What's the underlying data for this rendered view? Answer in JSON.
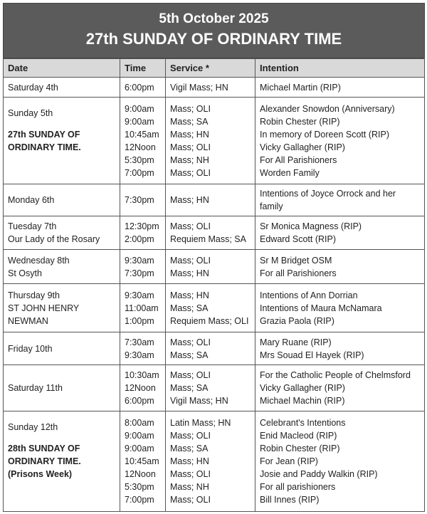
{
  "header": {
    "date": "5th October 2025",
    "title": "27th SUNDAY OF ORDINARY TIME"
  },
  "columns": [
    "Date",
    "Time",
    "Service *",
    "Intention"
  ],
  "rows": [
    {
      "date": [
        "Saturday 4th"
      ],
      "bold": [],
      "times": [
        "6:00pm"
      ],
      "services": [
        "Vigil Mass; HN"
      ],
      "intentions": [
        "Michael Martin (RIP)"
      ]
    },
    {
      "date": [
        "Sunday 5th"
      ],
      "bold": [
        "27th SUNDAY OF",
        "ORDINARY TIME."
      ],
      "times": [
        "9:00am",
        "9:00am",
        "10:45am",
        "12Noon",
        "5:30pm",
        "7:00pm"
      ],
      "services": [
        "Mass; OLI",
        "Mass; SA",
        "Mass; HN",
        "Mass; OLI",
        "Mass; NH",
        "Mass; OLI"
      ],
      "intentions": [
        "Alexander Snowdon (Anniversary)",
        "Robin Chester (RIP)",
        "In memory of Doreen Scott (RIP)",
        "Vicky Gallagher (RIP)",
        "For All Parishioners",
        "Worden Family"
      ]
    },
    {
      "date": [
        "Monday 6th"
      ],
      "bold": [],
      "times": [
        "7:30pm"
      ],
      "services": [
        "Mass; HN"
      ],
      "intentions": [
        "Intentions of Joyce Orrock and her family"
      ]
    },
    {
      "date": [
        "Tuesday 7th",
        "Our Lady of the Rosary"
      ],
      "bold": [],
      "times": [
        "12:30pm",
        "2:00pm"
      ],
      "services": [
        "Mass; OLI",
        "Requiem Mass; SA"
      ],
      "intentions": [
        "Sr Monica Magness (RIP)",
        "Edward Scott (RIP)"
      ]
    },
    {
      "date": [
        "Wednesday 8th",
        "St Osyth"
      ],
      "bold": [],
      "times": [
        "9:30am",
        "7:30pm"
      ],
      "services": [
        "Mass; OLI",
        "Mass; HN"
      ],
      "intentions": [
        "Sr M Bridget OSM",
        "For all Parishioners"
      ]
    },
    {
      "date": [
        "Thursday 9th",
        "ST JOHN HENRY",
        "NEWMAN"
      ],
      "bold": [],
      "times": [
        "9:30am",
        "11:00am",
        "1:00pm"
      ],
      "services": [
        "Mass; HN",
        "Mass; SA",
        "Requiem Mass; OLI"
      ],
      "intentions": [
        "Intentions of Ann Dorrian",
        "Intentions of Maura McNamara",
        "Grazia Paola (RIP)"
      ]
    },
    {
      "date": [
        "Friday 10th"
      ],
      "bold": [],
      "times": [
        "7:30am",
        "9:30am"
      ],
      "services": [
        "Mass; OLI",
        "Mass; SA"
      ],
      "intentions": [
        "Mary Ruane (RIP)",
        "Mrs Souad El Hayek (RIP)"
      ]
    },
    {
      "date": [
        "Saturday 11th"
      ],
      "bold": [],
      "times": [
        "10:30am",
        "12Noon",
        "6:00pm"
      ],
      "services": [
        "Mass; OLI",
        "Mass; SA",
        "Vigil Mass; HN"
      ],
      "intentions": [
        "For the Catholic People of Chelmsford",
        "Vicky Gallagher (RIP)",
        "Michael Machin (RIP)"
      ]
    },
    {
      "date": [
        "Sunday 12th"
      ],
      "bold": [
        "28th SUNDAY OF",
        "ORDINARY TIME.",
        "(Prisons Week)"
      ],
      "times": [
        "8:00am",
        "9:00am",
        "9:00am",
        "10:45am",
        "12Noon",
        "5:30pm",
        "7:00pm"
      ],
      "services": [
        "Latin Mass; HN",
        "Mass; OLI",
        "Mass; SA",
        "Mass; HN",
        "Mass; OLI",
        "Mass; NH",
        "Mass; OLI"
      ],
      "intentions": [
        "Celebrant's Intentions",
        "Enid Macleod (RIP)",
        "Robin Chester (RIP)",
        "For Jean (RIP)",
        "Josie and Paddy Walkin (RIP)",
        "For all parishioners",
        "Bill Innes (RIP)"
      ]
    }
  ]
}
